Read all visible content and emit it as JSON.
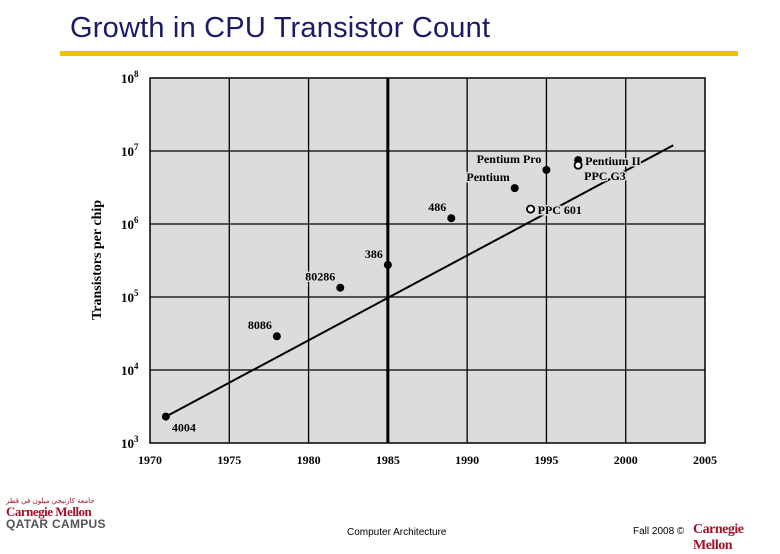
{
  "slide": {
    "title": "Growth in CPU Transistor Count",
    "footer_center": "Computer Architecture",
    "footer_right": "Fall 2008 ©",
    "footer_right_logo": "Carnegie Mellon"
  },
  "logo": {
    "arabic": "جامعة كارنيجي ميلون في قطر",
    "name": "Carnegie Mellon",
    "campus": "QATAR CAMPUS"
  },
  "colors": {
    "title": "#1a1a66",
    "rule": "#f2c200",
    "plot_bg": "#dcdcdc",
    "brand": "#a3112a"
  },
  "chart_data": {
    "type": "scatter",
    "title": "",
    "xlabel": "",
    "ylabel": "Transistors per chip",
    "xlim": [
      1970,
      2005
    ],
    "ylim_log10": [
      3,
      8
    ],
    "x_ticks": [
      1970,
      1975,
      1980,
      1985,
      1990,
      1995,
      2000,
      2005
    ],
    "y_ticks": [
      {
        "exp": 3,
        "label_base": "10",
        "label_exp": "3"
      },
      {
        "exp": 4,
        "label_base": "10",
        "label_exp": "4"
      },
      {
        "exp": 5,
        "label_base": "10",
        "label_exp": "5"
      },
      {
        "exp": 6,
        "label_base": "10",
        "label_exp": "6"
      },
      {
        "exp": 7,
        "label_base": "10",
        "label_exp": "7"
      },
      {
        "exp": 8,
        "label_base": "10",
        "label_exp": "8"
      }
    ],
    "grid": true,
    "reference_line_year": 1985,
    "trend": {
      "x": [
        1971,
        2003
      ],
      "y": [
        2300,
        12000000
      ]
    },
    "points": [
      {
        "name": "4004",
        "year": 1971,
        "transistors": 2300,
        "marker": "filled",
        "label_pos": "below-right"
      },
      {
        "name": "8086",
        "year": 1978,
        "transistors": 29000,
        "marker": "filled",
        "label_pos": "above-left"
      },
      {
        "name": "80286",
        "year": 1982,
        "transistors": 134000,
        "marker": "filled",
        "label_pos": "above-left"
      },
      {
        "name": "386",
        "year": 1985,
        "transistors": 275000,
        "marker": "filled",
        "label_pos": "above-left"
      },
      {
        "name": "486",
        "year": 1989,
        "transistors": 1200000,
        "marker": "filled",
        "label_pos": "above-left"
      },
      {
        "name": "Pentium",
        "year": 1993,
        "transistors": 3100000,
        "marker": "filled",
        "label_pos": "above-left"
      },
      {
        "name": "Pentium Pro",
        "year": 1995,
        "transistors": 5500000,
        "marker": "filled",
        "label_pos": "above-left"
      },
      {
        "name": "Pentium II",
        "year": 1997,
        "transistors": 7500000,
        "marker": "filled",
        "label_pos": "right"
      },
      {
        "name": "PPC 601",
        "year": 1994,
        "transistors": 1600000,
        "marker": "open",
        "label_pos": "right"
      },
      {
        "name": "PPC G3",
        "year": 1997,
        "transistors": 6400000,
        "marker": "open",
        "label_pos": "below-right"
      }
    ]
  }
}
